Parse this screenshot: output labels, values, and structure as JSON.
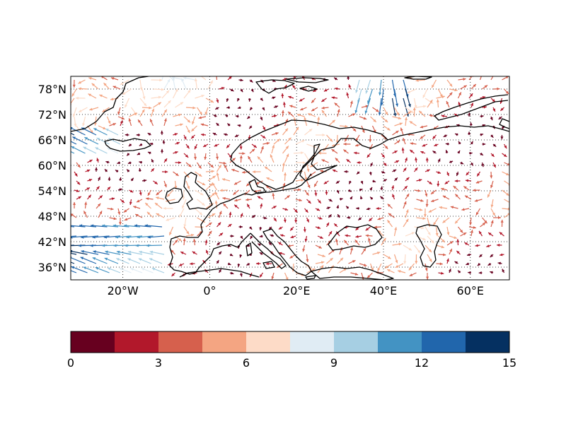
{
  "map": {
    "lon_range": [
      -32,
      69
    ],
    "lat_range": [
      33,
      81
    ],
    "lon_ticks": [
      {
        "value": -20,
        "label": "20°W"
      },
      {
        "value": 0,
        "label": "0°"
      },
      {
        "value": 20,
        "label": "20°E"
      },
      {
        "value": 40,
        "label": "40°E"
      },
      {
        "value": 60,
        "label": "60°E"
      }
    ],
    "lat_ticks": [
      {
        "value": 78,
        "label": "78°N"
      },
      {
        "value": 72,
        "label": "72°N"
      },
      {
        "value": 66,
        "label": "66°N"
      },
      {
        "value": 60,
        "label": "60°N"
      },
      {
        "value": 54,
        "label": "54°N"
      },
      {
        "value": 48,
        "label": "48°N"
      },
      {
        "value": 42,
        "label": "42°N"
      },
      {
        "value": 36,
        "label": "36°N"
      }
    ],
    "gridlines": "dotted",
    "coastline_color": "#000000",
    "field": "wind vectors colored by speed"
  },
  "colorbar": {
    "orientation": "horizontal",
    "placement": "bottom",
    "range": [
      0,
      15
    ],
    "tick_labels": [
      "0",
      "3",
      "6",
      "9",
      "12",
      "15"
    ],
    "colors": [
      "#67001f",
      "#b2182b",
      "#d6604d",
      "#f4a582",
      "#fddbc7",
      "#e0ecf4",
      "#a6cfe3",
      "#4393c3",
      "#2166ac",
      "#053061"
    ]
  }
}
